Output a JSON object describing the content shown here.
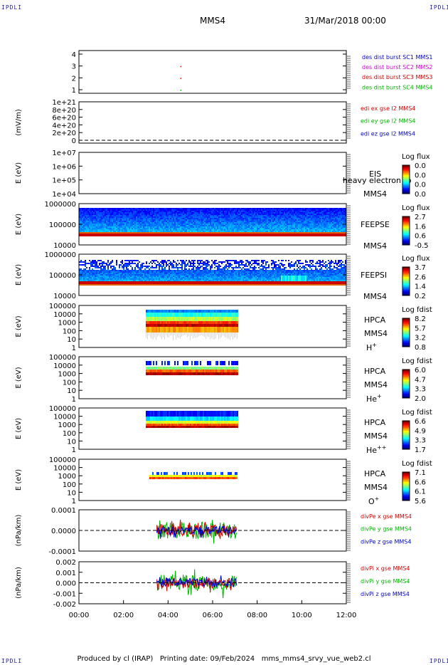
{
  "corner_label": "IPDLI",
  "header": {
    "spacecraft": "MMS4",
    "date": "31/Mar/2018 00:00"
  },
  "footer": {
    "produced_by": "Produced by cl (IRAP)",
    "printing_date": "Printing date: 09/Feb/2024",
    "script_name": "mms_mms4_srvy_vue_web2.cl"
  },
  "colors": {
    "mms1": "#0000c8",
    "mms2": "#d200d2",
    "mms3": "#d20000",
    "mms4": "#00b400",
    "red": "#d20000",
    "green": "#00b400",
    "blue": "#0000c8"
  },
  "chart_data": [
    {
      "type": "scatter",
      "yticks": [
        "4",
        "3",
        "2",
        "1"
      ],
      "legend": [
        {
          "text": "des dist burst SC1 MMS1",
          "color": "mms1"
        },
        {
          "text": "des dist burst SC2 MMS2",
          "color": "mms2"
        },
        {
          "text": "des dist burst SC3 MMS3",
          "color": "mms3"
        },
        {
          "text": "des dist burst SC4 MMS4",
          "color": "mms4"
        }
      ],
      "points": [
        {
          "x": 4.55,
          "y": 3
        },
        {
          "x": 4.55,
          "y": 2
        },
        {
          "x": 4.55,
          "y": 1
        }
      ]
    },
    {
      "type": "line",
      "ylabel": "(mV/m)",
      "yticks": [
        "1e+21",
        "8e+20",
        "6e+20",
        "4e+20",
        "2e+20",
        "0"
      ],
      "legend": [
        {
          "text": "edi ex gse l2 MMS4",
          "color": "red"
        },
        {
          "text": "edi ey gse l2 MMS4",
          "color": "green"
        },
        {
          "text": "edi ez gse l2 MMS4",
          "color": "blue"
        }
      ]
    },
    {
      "type": "heatmap",
      "ylabel": "E (eV)",
      "yticks": [
        "1e+07",
        "1e+06",
        "1e+05",
        "1e+04"
      ],
      "labels": [
        "EIS",
        "heavy electron to",
        "MMS4"
      ],
      "colorbar_title": "Log flux",
      "colorbar_ticks": [
        "0.0",
        "0.0",
        "0.0",
        "0.0"
      ]
    },
    {
      "type": "heatmap",
      "ylabel": "E (eV)",
      "yticks": [
        "1000000",
        "100000",
        "10000"
      ],
      "labels": [
        "FEEPSE",
        "MMS4"
      ],
      "colorbar_title": "Log flux",
      "colorbar_ticks": [
        "2.7",
        "1.6",
        "0.6",
        "-0.5"
      ]
    },
    {
      "type": "heatmap",
      "ylabel": "E (eV)",
      "yticks": [
        "1000000",
        "100000",
        "10000"
      ],
      "labels": [
        "FEEPSI",
        "MMS4"
      ],
      "colorbar_title": "Log flux",
      "colorbar_ticks": [
        "3.7",
        "2.6",
        "1.4",
        "0.2"
      ]
    },
    {
      "type": "heatmap",
      "ylabel": "E (eV)",
      "yticks": [
        "100000",
        "10000",
        "1000",
        "100",
        "10",
        "1"
      ],
      "labels": [
        "HPCA",
        "MMS4"
      ],
      "species": "H",
      "species_sup": "+",
      "colorbar_title": "Log fdist",
      "colorbar_ticks": [
        "8.2",
        "5.7",
        "3.2",
        "0.8"
      ],
      "time_range": [
        3.0,
        7.1
      ]
    },
    {
      "type": "heatmap",
      "ylabel": "E (eV)",
      "yticks": [
        "100000",
        "10000",
        "1000",
        "100",
        "10",
        "1"
      ],
      "labels": [
        "HPCA",
        "MMS4"
      ],
      "species": "He",
      "species_sup": "+",
      "colorbar_title": "Log fdist",
      "colorbar_ticks": [
        "6.0",
        "4.7",
        "3.3",
        "2.0"
      ],
      "time_range": [
        3.0,
        7.1
      ]
    },
    {
      "type": "heatmap",
      "ylabel": "E (eV)",
      "yticks": [
        "100000",
        "10000",
        "1000",
        "100",
        "10",
        "1"
      ],
      "labels": [
        "HPCA",
        "MMS4"
      ],
      "species": "He",
      "species_sup": "++",
      "colorbar_title": "Log fdist",
      "colorbar_ticks": [
        "6.6",
        "4.9",
        "3.3",
        "1.7"
      ],
      "time_range": [
        3.0,
        7.1
      ]
    },
    {
      "type": "heatmap",
      "ylabel": "E (eV)",
      "yticks": [
        "100000",
        "10000",
        "1000",
        "100",
        "10",
        "1"
      ],
      "labels": [
        "HPCA",
        "MMS4"
      ],
      "species": "O",
      "species_sup": "+",
      "colorbar_title": "Log fdist",
      "colorbar_ticks": [
        "7.1",
        "6.6",
        "6.1",
        "5.6"
      ],
      "time_range": [
        3.0,
        7.1
      ]
    },
    {
      "type": "line",
      "ylabel": "(nPa/km)",
      "yticks": [
        "0.0001",
        "0.0000",
        "-0.0001"
      ],
      "legend": [
        {
          "text": "divPe x gse MMS4",
          "color": "red"
        },
        {
          "text": "divPe y gse MMS4",
          "color": "green"
        },
        {
          "text": "divPe z gse MMS4",
          "color": "blue"
        }
      ],
      "time_range": [
        3.5,
        7.1
      ]
    },
    {
      "type": "line",
      "ylabel": "(nPa/km)",
      "yticks": [
        "0.002",
        "0.001",
        "0.000",
        "-0.001",
        "-0.002"
      ],
      "legend": [
        {
          "text": "divPi x gse MMS4",
          "color": "red"
        },
        {
          "text": "divPi y gse MMS4",
          "color": "green"
        },
        {
          "text": "divPi z gse MMS4",
          "color": "blue"
        }
      ],
      "time_range": [
        3.5,
        7.1
      ]
    }
  ],
  "xaxis": {
    "ticks": [
      "00:00",
      "02:00",
      "04:00",
      "06:00",
      "08:00",
      "10:00",
      "12:00"
    ],
    "range": [
      0,
      12
    ]
  }
}
